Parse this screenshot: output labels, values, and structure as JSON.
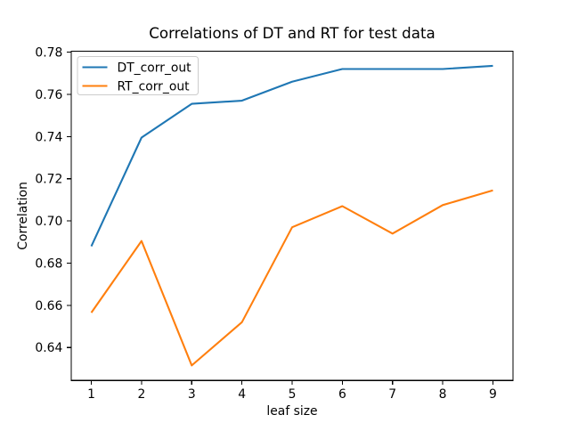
{
  "figure": {
    "background": "#ffffff"
  },
  "chart_data": {
    "type": "line",
    "title": "Correlations of DT and RT for test data",
    "xlabel": "leaf size",
    "ylabel": "Correlation",
    "x": [
      1,
      2,
      3,
      4,
      5,
      6,
      7,
      8,
      9
    ],
    "series": [
      {
        "name": "DT_corr_out",
        "color": "#1f77b4",
        "values": [
          0.688,
          0.7395,
          0.7555,
          0.757,
          0.766,
          0.772,
          0.772,
          0.772,
          0.7735
        ]
      },
      {
        "name": "RT_corr_out",
        "color": "#ff7f0e",
        "values": [
          0.6565,
          0.6905,
          0.6315,
          0.652,
          0.697,
          0.707,
          0.694,
          0.7075,
          0.7145
        ]
      }
    ],
    "x_ticks": [
      1,
      2,
      3,
      4,
      5,
      6,
      7,
      8,
      9
    ],
    "y_ticks": [
      0.64,
      0.66,
      0.68,
      0.7,
      0.72,
      0.74,
      0.76,
      0.78
    ],
    "xlim": [
      0.6,
      9.4
    ],
    "ylim": [
      0.6244,
      0.7804
    ],
    "grid": false,
    "legend": {
      "position": "upper left",
      "entries": [
        "DT_corr_out",
        "RT_corr_out"
      ]
    },
    "axis_color": "#000000",
    "legend_border_color": "#cccccc"
  }
}
